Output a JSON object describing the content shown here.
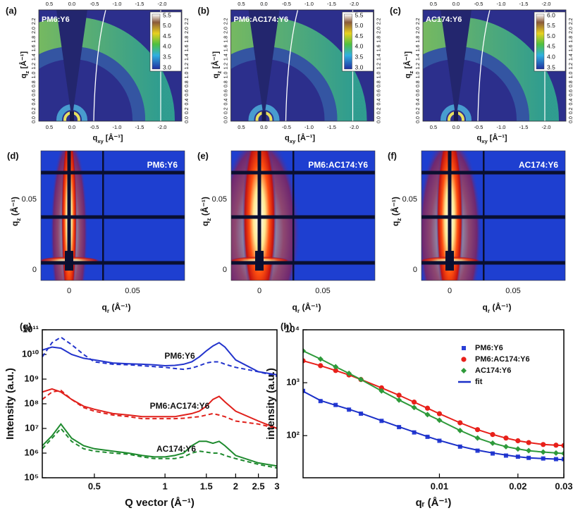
{
  "giwaxs": {
    "x_label": {
      "base": "q",
      "sub": "xy",
      "unit": " [Å⁻¹]"
    },
    "y_label": {
      "base": "q",
      "sub": "z",
      "unit": " [Å⁻¹]"
    },
    "qxy_ticks": [
      "0.5",
      "0.0",
      "-0.5",
      "-1.0",
      "-1.5",
      "-2.0"
    ],
    "qz_ticks": [
      "0.0",
      "0.2",
      "0.4",
      "0.6",
      "0.8",
      "1.0",
      "1.2",
      "1.4",
      "1.6",
      "1.8",
      "2.0",
      "2.2"
    ],
    "panels": [
      {
        "tag": "(a)",
        "sample": "PM6:Y6",
        "colorbar": [
          "5.5",
          "5.0",
          "4.5",
          "4.0",
          "3.5",
          "3.0"
        ]
      },
      {
        "tag": "(b)",
        "sample": "PM6:AC174:Y6",
        "colorbar": [
          "5.5",
          "5.0",
          "4.5",
          "4.0",
          "3.5",
          "3.0"
        ]
      },
      {
        "tag": "(c)",
        "sample": "AC174:Y6",
        "colorbar": [
          "6.0",
          "5.5",
          "5.0",
          "4.5",
          "4.0",
          "3.5"
        ]
      }
    ]
  },
  "gisaxs": {
    "x_label": {
      "base": "q",
      "sub": "r",
      "unit": " (Å⁻¹)"
    },
    "y_label": {
      "base": "q",
      "sub": "z",
      "unit": " (Å⁻¹)"
    },
    "qr_ticks": [
      "0",
      "0.05"
    ],
    "qz_ticks": [
      "0.05",
      "0"
    ],
    "panels": [
      {
        "tag": "(d)",
        "sample": "PM6:Y6"
      },
      {
        "tag": "(e)",
        "sample": "PM6:AC174:Y6"
      },
      {
        "tag": "(f)",
        "sample": "AC174:Y6"
      }
    ]
  },
  "chart_data": [
    {
      "type": "line",
      "tag": "(g)",
      "x_label": "Q vector (Å⁻¹)",
      "y_label": "Intensity (a.u.)",
      "log_x": true,
      "log_y": true,
      "xlim": [
        0.3,
        3
      ],
      "ylim": [
        100000,
        100000000000
      ],
      "xticks": [
        0.5,
        1,
        1.5,
        2,
        2.5,
        3
      ],
      "yticks": [
        {
          "value": 100000,
          "label": "10⁵"
        },
        {
          "value": 1000000,
          "label": "10⁶"
        },
        {
          "value": 10000000,
          "label": "10⁷"
        },
        {
          "value": 100000000,
          "label": "10⁸"
        },
        {
          "value": 1000000000,
          "label": "10⁹"
        },
        {
          "value": 10000000000,
          "label": "10¹⁰"
        },
        {
          "value": 100000000000,
          "label": "10¹¹"
        }
      ],
      "x": [
        0.3,
        0.33,
        0.36,
        0.4,
        0.45,
        0.5,
        0.6,
        0.7,
        0.8,
        0.9,
        1.0,
        1.1,
        1.2,
        1.3,
        1.4,
        1.5,
        1.6,
        1.7,
        1.8,
        2.0,
        2.5,
        3.0
      ],
      "series": [
        {
          "name": "PM6:Y6",
          "color": "#2233cc",
          "dashed": false,
          "values": [
            15000000000,
            20000000000,
            18000000000,
            10000000000,
            7000000000,
            6000000000,
            4500000000,
            4200000000,
            4000000000,
            3800000000,
            3500000000,
            3600000000,
            4000000000,
            5000000000,
            8000000000,
            14000000000,
            22000000000,
            30000000000,
            20000000000,
            6000000000,
            2000000000,
            1500000000
          ]
        },
        {
          "color": "#2233cc",
          "dashed": true,
          "values": [
            8000000000,
            30000000000,
            50000000000,
            25000000000,
            10000000000,
            5000000000,
            4000000000,
            3800000000,
            3500000000,
            3200000000,
            3000000000,
            2700000000,
            2500000000,
            2800000000,
            3500000000,
            4500000000,
            5000000000,
            5000000000,
            4000000000,
            3000000000,
            2000000000,
            1300000000
          ]
        },
        {
          "name": "PM6:AC174:Y6",
          "color": "#e0201b",
          "dashed": false,
          "values": [
            300000000,
            400000000,
            300000000,
            150000000,
            80000000,
            60000000,
            40000000,
            35000000,
            30000000,
            30000000,
            30000000,
            30000000,
            35000000,
            40000000,
            50000000,
            80000000,
            150000000,
            200000000,
            120000000,
            50000000,
            20000000,
            10000000
          ]
        },
        {
          "color": "#e0201b",
          "dashed": true,
          "values": [
            150000000,
            300000000,
            350000000,
            150000000,
            70000000,
            50000000,
            35000000,
            30000000,
            25000000,
            25000000,
            25000000,
            25000000,
            26000000,
            28000000,
            30000000,
            35000000,
            40000000,
            35000000,
            30000000,
            20000000,
            15000000,
            10000000
          ]
        },
        {
          "name": "AC174:Y6",
          "color": "#1e8a2e",
          "dashed": false,
          "values": [
            2000000,
            5000000,
            15000000,
            4000000,
            2000000,
            1500000,
            1200000,
            1000000,
            800000,
            700000,
            700000,
            800000,
            1000000,
            2000000,
            3000000,
            3000000,
            2500000,
            3000000,
            2000000,
            800000,
            400000,
            300000
          ]
        },
        {
          "color": "#1e8a2e",
          "dashed": true,
          "values": [
            1500000,
            4000000,
            10000000,
            3000000,
            1500000,
            1200000,
            1000000,
            900000,
            700000,
            600000,
            600000,
            600000,
            700000,
            1000000,
            1200000,
            1100000,
            1000000,
            1000000,
            800000,
            600000,
            350000,
            250000
          ]
        }
      ]
    },
    {
      "type": "scatter",
      "tag": "(h)",
      "x_label": "qᵣ (Å⁻¹)",
      "y_label": "intensity (a.u.)",
      "log_x": true,
      "log_y": true,
      "xlim": [
        0.003,
        0.03
      ],
      "ylim": [
        16,
        10000
      ],
      "xticks": [
        0.01,
        0.02,
        0.03
      ],
      "yticks": [
        {
          "value": 100,
          "label": "10²"
        },
        {
          "value": 1000,
          "label": "10³"
        },
        {
          "value": 10000,
          "label": "10⁴"
        }
      ],
      "legend": "upper right",
      "x": [
        0.003,
        0.0035,
        0.004,
        0.0045,
        0.005,
        0.006,
        0.007,
        0.008,
        0.009,
        0.01,
        0.012,
        0.014,
        0.016,
        0.018,
        0.02,
        0.022,
        0.025,
        0.028,
        0.03
      ],
      "series": [
        {
          "name": "PM6:Y6",
          "color": "#2a3fd6",
          "marker": "square",
          "line": false,
          "values": [
            700,
            450,
            380,
            310,
            260,
            190,
            145,
            115,
            95,
            80,
            62,
            52,
            46,
            42,
            40,
            38,
            37,
            36,
            36
          ]
        },
        {
          "name": "PM6:AC174:Y6",
          "color": "#e8201a",
          "marker": "circle",
          "line": true,
          "values": [
            2600,
            2100,
            1700,
            1400,
            1150,
            800,
            580,
            430,
            330,
            260,
            175,
            130,
            105,
            90,
            80,
            74,
            68,
            66,
            65
          ]
        },
        {
          "name": "AC174:Y6",
          "color": "#2e9a3a",
          "marker": "diamond",
          "line": true,
          "values": [
            4000,
            2800,
            2000,
            1500,
            1150,
            700,
            470,
            340,
            250,
            195,
            125,
            90,
            72,
            62,
            56,
            52,
            49,
            47,
            46
          ]
        },
        {
          "name": "fit",
          "color": "#1a2fc8",
          "line": true,
          "values": [
            690,
            460,
            375,
            315,
            265,
            192,
            147,
            117,
            96,
            81,
            63,
            53,
            47,
            43,
            40,
            38,
            37,
            36,
            35
          ]
        }
      ]
    }
  ]
}
